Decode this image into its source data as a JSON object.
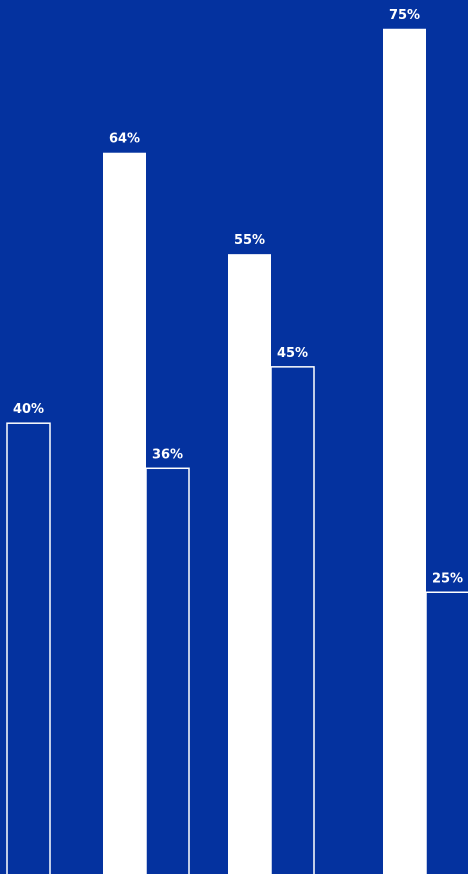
{
  "colors": {
    "background": "#04329F",
    "bar_fill": "#FFFFFF",
    "bar_outline": "#FFFFFF"
  },
  "chart_data": {
    "type": "bar",
    "categories": [
      "",
      "",
      "",
      ""
    ],
    "series": [
      {
        "style": "solid",
        "values": [
          null,
          64,
          55,
          75
        ],
        "labels": [
          "",
          "64%",
          "55%",
          "75%"
        ]
      },
      {
        "style": "outline",
        "values": [
          40,
          36,
          45,
          25
        ],
        "labels": [
          "40%",
          "36%",
          "45%",
          "25%"
        ]
      }
    ],
    "ylim": [
      0,
      100
    ],
    "grid": false,
    "legend": "none"
  }
}
